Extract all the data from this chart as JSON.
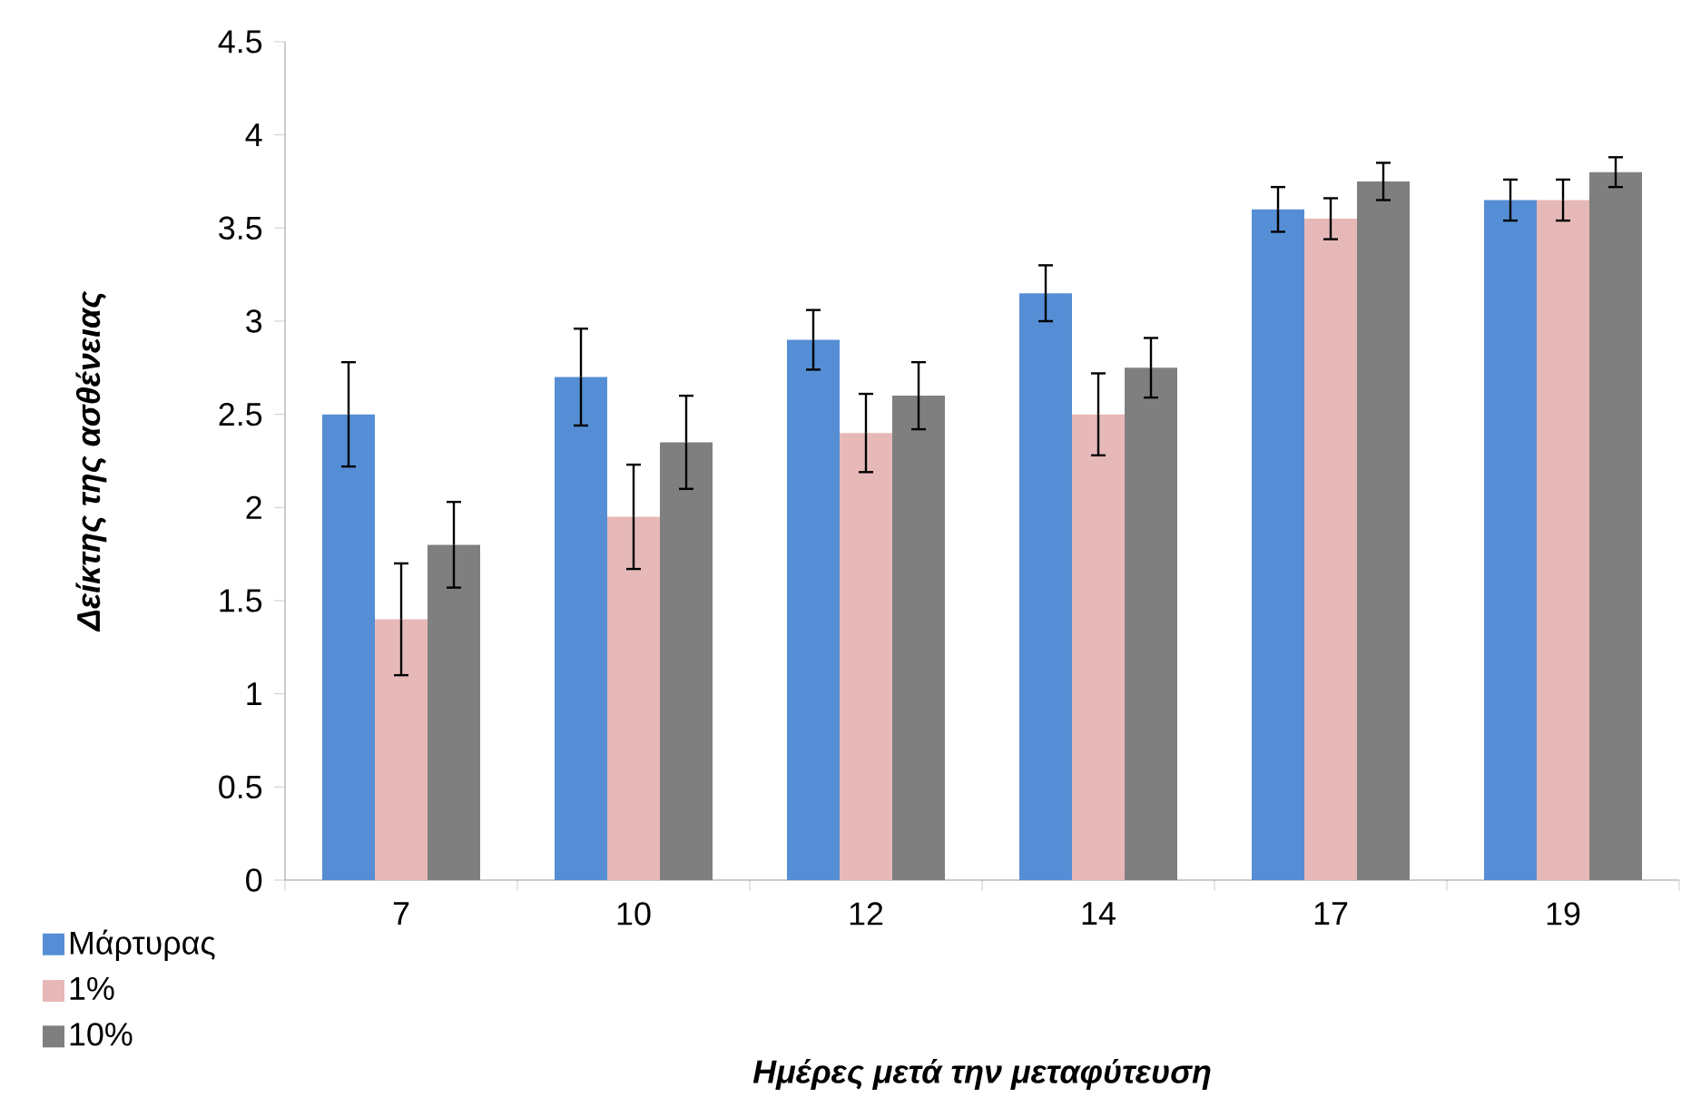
{
  "chart_data": {
    "type": "bar",
    "xlabel": "Ημέρες μετά την μεταφύτευση",
    "ylabel": "Δείκτης της ασθένειας",
    "categories": [
      "7",
      "10",
      "12",
      "14",
      "17",
      "19"
    ],
    "series": [
      {
        "name": "Μάρτυρας",
        "color": "#558ed5",
        "values": [
          2.5,
          2.7,
          2.9,
          3.15,
          3.6,
          3.65
        ],
        "errors": [
          0.28,
          0.26,
          0.16,
          0.15,
          0.12,
          0.11
        ]
      },
      {
        "name": "1%",
        "color": "#e6b9b8",
        "values": [
          1.4,
          1.95,
          2.4,
          2.5,
          3.55,
          3.65
        ],
        "errors": [
          0.3,
          0.28,
          0.21,
          0.22,
          0.11,
          0.11
        ]
      },
      {
        "name": "10%",
        "color": "#7f7f7f",
        "values": [
          1.8,
          2.35,
          2.6,
          2.75,
          3.75,
          3.8
        ],
        "errors": [
          0.23,
          0.25,
          0.18,
          0.16,
          0.1,
          0.08
        ]
      }
    ],
    "ylim": [
      0,
      4.5
    ],
    "yticks": [
      0,
      0.5,
      1,
      1.5,
      2,
      2.5,
      3,
      3.5,
      4,
      4.5
    ],
    "legend": "bottom left"
  }
}
